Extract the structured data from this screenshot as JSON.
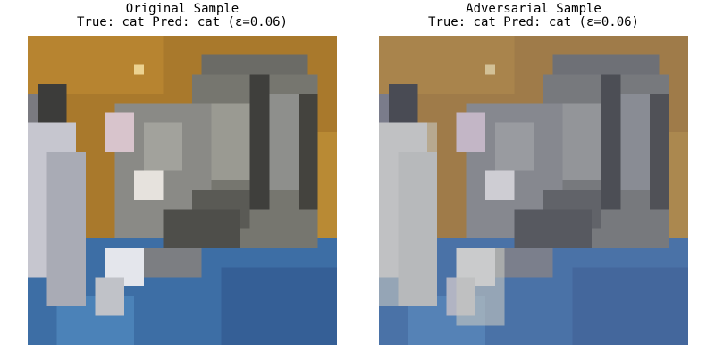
{
  "panels": [
    {
      "title": "Original Sample",
      "subtitle": "True: cat Pred: cat (ε=0.06)"
    },
    {
      "title": "Adversarial Sample",
      "subtitle": "True: cat Pred: cat (ε=0.06)"
    }
  ]
}
